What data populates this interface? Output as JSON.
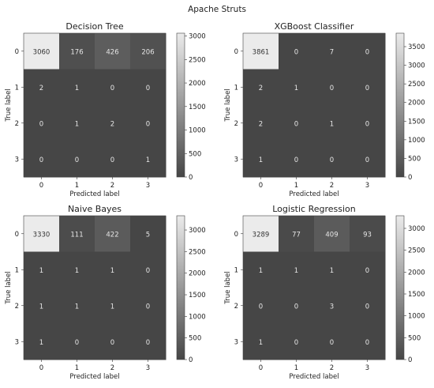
{
  "figure_title": "Apache Struts",
  "chart_data": [
    {
      "type": "heatmap",
      "title": "Decision Tree",
      "xlabel": "Predicted label",
      "ylabel": "True label",
      "x_ticks": [
        "0",
        "1",
        "2",
        "3"
      ],
      "y_ticks": [
        "0",
        "1",
        "2",
        "3"
      ],
      "matrix": [
        [
          3060,
          176,
          426,
          206
        ],
        [
          2,
          1,
          0,
          0
        ],
        [
          0,
          1,
          2,
          0
        ],
        [
          0,
          0,
          0,
          1
        ]
      ],
      "colorbar": {
        "min": 0,
        "max": 3060,
        "ticks": [
          0,
          500,
          1000,
          1500,
          2000,
          2500,
          3000
        ]
      },
      "colormap": [
        "#464646",
        "#ebebeb"
      ]
    },
    {
      "type": "heatmap",
      "title": "XGBoost Classifier",
      "xlabel": "Predicted label",
      "ylabel": "True label",
      "x_ticks": [
        "0",
        "1",
        "2",
        "3"
      ],
      "y_ticks": [
        "0",
        "1",
        "2",
        "3"
      ],
      "matrix": [
        [
          3861,
          0,
          7,
          0
        ],
        [
          2,
          1,
          0,
          0
        ],
        [
          2,
          0,
          1,
          0
        ],
        [
          1,
          0,
          0,
          0
        ]
      ],
      "colorbar": {
        "min": 0,
        "max": 3861,
        "ticks": [
          0,
          500,
          1000,
          1500,
          2000,
          2500,
          3000,
          3500
        ]
      },
      "colormap": [
        "#464646",
        "#ebebeb"
      ]
    },
    {
      "type": "heatmap",
      "title": "Naive Bayes",
      "xlabel": "Predicted label",
      "ylabel": "True label",
      "x_ticks": [
        "0",
        "1",
        "2",
        "3"
      ],
      "y_ticks": [
        "0",
        "1",
        "2",
        "3"
      ],
      "matrix": [
        [
          3330,
          111,
          422,
          5
        ],
        [
          1,
          1,
          1,
          0
        ],
        [
          1,
          1,
          1,
          0
        ],
        [
          1,
          0,
          0,
          0
        ]
      ],
      "colorbar": {
        "min": 0,
        "max": 3330,
        "ticks": [
          0,
          500,
          1000,
          1500,
          2000,
          2500,
          3000
        ]
      },
      "colormap": [
        "#464646",
        "#ebebeb"
      ]
    },
    {
      "type": "heatmap",
      "title": "Logistic Regression",
      "xlabel": "Predicted label",
      "ylabel": "True label",
      "x_ticks": [
        "0",
        "1",
        "2",
        "3"
      ],
      "y_ticks": [
        "0",
        "1",
        "2",
        "3"
      ],
      "matrix": [
        [
          3289,
          77,
          409,
          93
        ],
        [
          1,
          1,
          1,
          0
        ],
        [
          0,
          0,
          3,
          0
        ],
        [
          1,
          0,
          0,
          0
        ]
      ],
      "colorbar": {
        "min": 0,
        "max": 3289,
        "ticks": [
          0,
          500,
          1000,
          1500,
          2000,
          2500,
          3000
        ]
      },
      "colormap": [
        "#464646",
        "#ebebeb"
      ]
    }
  ]
}
